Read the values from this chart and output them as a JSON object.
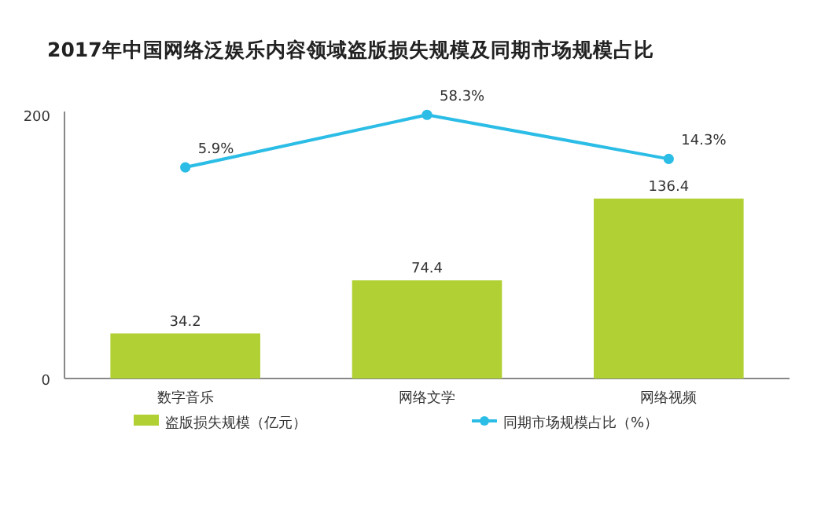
{
  "chart_data": {
    "type": "bar",
    "title": "2017年中国网络泛娱乐内容领域盗版损失规模及同期市场规模占比",
    "categories": [
      "数字音乐",
      "网络文学",
      "网络视频"
    ],
    "series": [
      {
        "name": "盗版损失规模（亿元）",
        "color": "#b0d033",
        "values": [
          34.2,
          74.4,
          136.4
        ],
        "value_labels": [
          "34.2",
          "74.4",
          "136.4"
        ]
      },
      {
        "name": "同期市场规模占比（%）",
        "type": "line",
        "axis": "y2",
        "color": "#2bbde6",
        "marker": "circle",
        "values": [
          5.9,
          58.3,
          14.3
        ],
        "value_labels": [
          "5.9%",
          "58.3%",
          "14.3%"
        ]
      }
    ],
    "ylim": [
      0,
      200
    ],
    "yticks": [
      0,
      200
    ],
    "y2lim": [
      -205,
      58.5
    ],
    "legend": "bottom"
  }
}
